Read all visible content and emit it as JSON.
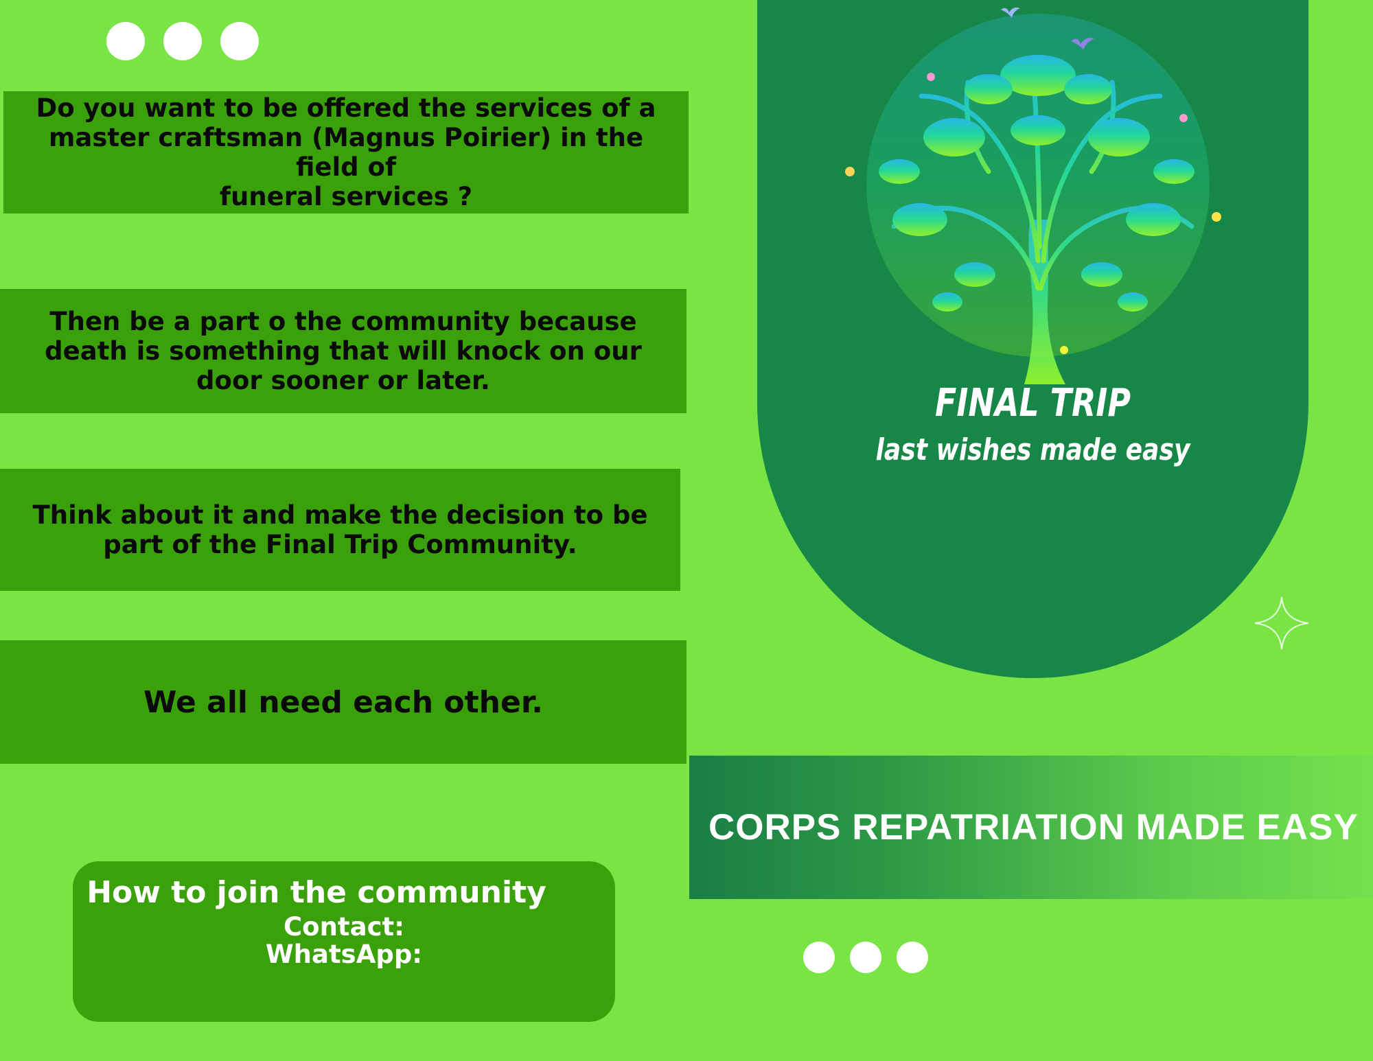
{
  "cards": [
    {
      "lines": [
        "Do you want to be offered the services of a",
        "master craftsman (Magnus Poirier) in the field of",
        "funeral services ?"
      ]
    },
    {
      "lines": [
        "Then be a part o the community because",
        "death is something that will knock on our",
        "door sooner or later."
      ]
    },
    {
      "lines": [
        "Think about it and make the decision to be",
        "part of the Final Trip Community."
      ]
    },
    {
      "lines": [
        "We all need each other."
      ]
    }
  ],
  "join": {
    "title": "How to join the community",
    "contact_label": "Contact:",
    "whatsapp_label": "WhatsApp:"
  },
  "brand": {
    "name": "FINAL TRIP",
    "tagline": "last wishes made easy",
    "logo_icon": "tree-icon"
  },
  "banner": {
    "text": "CORPS REPATRIATION MADE EASY"
  },
  "colors": {
    "background": "#78e545",
    "card": "#3aa10a",
    "arch": "#168746",
    "banner_start": "#1a7e45",
    "banner_end": "#74e14c"
  }
}
